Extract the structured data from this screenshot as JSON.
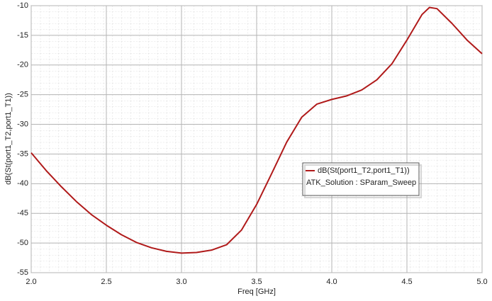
{
  "chart_data": {
    "type": "line",
    "x_label": "Freq [GHz]",
    "y_label": "dB(St(port1_T2,port1_T1))",
    "x": [
      2.0,
      2.1,
      2.2,
      2.3,
      2.4,
      2.5,
      2.6,
      2.7,
      2.8,
      2.9,
      3.0,
      3.1,
      3.2,
      3.3,
      3.4,
      3.5,
      3.6,
      3.7,
      3.8,
      3.9,
      4.0,
      4.1,
      4.2,
      4.3,
      4.4,
      4.5,
      4.6,
      4.65,
      4.7,
      4.8,
      4.9,
      5.0
    ],
    "series": [
      {
        "name": "dB(St(port1_T2,port1_T1))",
        "color": "#b01a1a",
        "values": [
          -34.8,
          -37.8,
          -40.5,
          -43,
          -45.2,
          -47,
          -48.6,
          -49.9,
          -50.8,
          -51.4,
          -51.7,
          -51.6,
          -51.2,
          -50.3,
          -47.8,
          -43.5,
          -38.3,
          -33,
          -28.8,
          -26.6,
          -25.8,
          -25.2,
          -24.2,
          -22.5,
          -19.8,
          -15.8,
          -11.5,
          -10.3,
          -10.5,
          -13,
          -15.8,
          -18.1
        ]
      }
    ],
    "legend_note": "ATK_Solution : SParam_Sweep",
    "xlim": [
      2.0,
      5.0
    ],
    "ylim": [
      -55,
      -10
    ],
    "xticks": [
      {
        "value": 2,
        "label": "2.0"
      },
      {
        "value": 2.5,
        "label": "2.5"
      },
      {
        "value": 3,
        "label": "3.0"
      },
      {
        "value": 3.5,
        "label": "3.5"
      },
      {
        "value": 4,
        "label": "4.0"
      },
      {
        "value": 4.5,
        "label": "4.5"
      },
      {
        "value": 5,
        "label": "5.0"
      }
    ],
    "yticks": [
      -55,
      -50,
      -45,
      -40,
      -35,
      -30,
      -25,
      -20,
      -15,
      -10
    ],
    "grid": true
  }
}
